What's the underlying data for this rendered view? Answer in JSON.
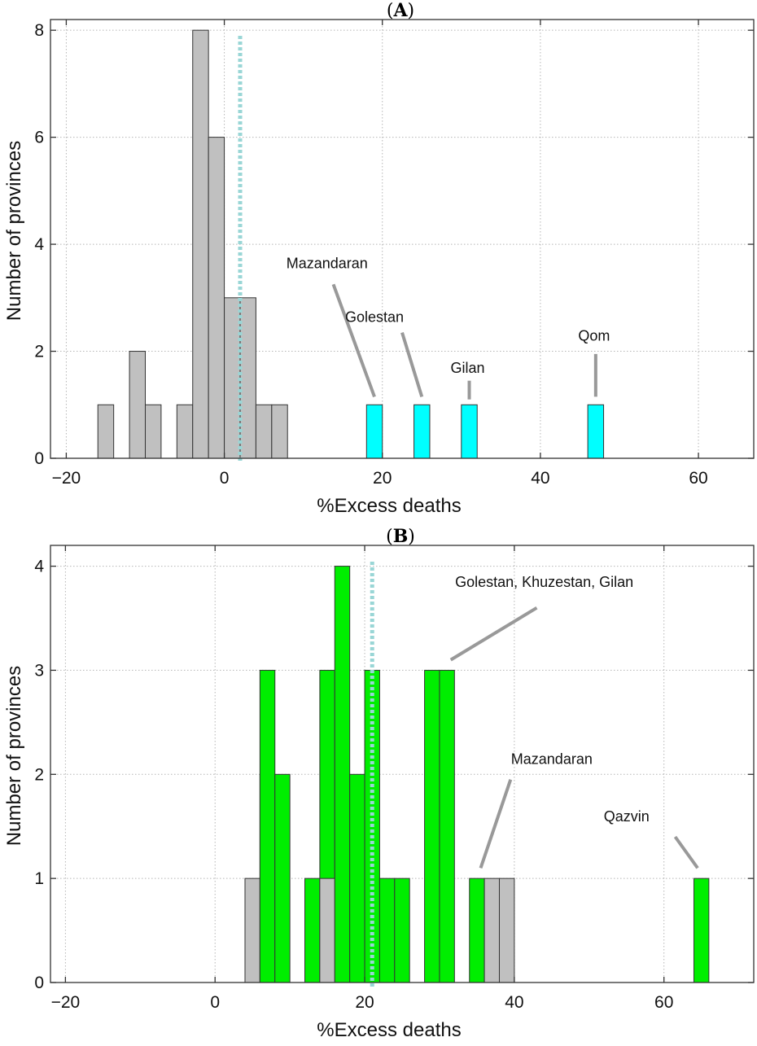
{
  "chart_data": [
    {
      "type": "bar",
      "panel_label": "A",
      "xlabel": "%Excess deaths",
      "ylabel": "Number of provinces",
      "xlim": [
        -22,
        67
      ],
      "ylim": [
        0,
        8.2
      ],
      "xticks": [
        -20,
        0,
        20,
        40,
        60
      ],
      "yticks": [
        0,
        2,
        4,
        6,
        8
      ],
      "grid": true,
      "reference_line_x": 2,
      "colors": {
        "gray": "#c0c0c0",
        "highlight": "#00ffff",
        "refline": "#99d6d6"
      },
      "bars": [
        {
          "x0": -16,
          "x1": -14,
          "value": 1,
          "color": "gray"
        },
        {
          "x0": -12,
          "x1": -10,
          "value": 2,
          "color": "gray"
        },
        {
          "x0": -10,
          "x1": -8,
          "value": 1,
          "color": "gray"
        },
        {
          "x0": -6,
          "x1": -4,
          "value": 1,
          "color": "gray"
        },
        {
          "x0": -4,
          "x1": -2,
          "value": 8,
          "color": "gray"
        },
        {
          "x0": -2,
          "x1": 0,
          "value": 6,
          "color": "gray"
        },
        {
          "x0": 0,
          "x1": 2,
          "value": 3,
          "color": "gray"
        },
        {
          "x0": 2,
          "x1": 4,
          "value": 3,
          "color": "gray"
        },
        {
          "x0": 4,
          "x1": 6,
          "value": 1,
          "color": "gray"
        },
        {
          "x0": 6,
          "x1": 8,
          "value": 1,
          "color": "gray"
        },
        {
          "x0": 18,
          "x1": 20,
          "value": 1,
          "color": "highlight"
        },
        {
          "x0": 24,
          "x1": 26,
          "value": 1,
          "color": "highlight"
        },
        {
          "x0": 30,
          "x1": 32,
          "value": 1,
          "color": "highlight"
        },
        {
          "x0": 46,
          "x1": 48,
          "value": 1,
          "color": "highlight"
        }
      ],
      "annotations": [
        {
          "text": "Mazandaran",
          "tx": 13,
          "ty": 3.55,
          "from": [
            13.8,
            3.25
          ],
          "to": [
            19,
            1.15
          ]
        },
        {
          "text": "Golestan",
          "tx": 19,
          "ty": 2.55,
          "from": [
            22.5,
            2.35
          ],
          "to": [
            25,
            1.15
          ]
        },
        {
          "text": "Gilan",
          "tx": 30.8,
          "ty": 1.6,
          "from": [
            31,
            1.45
          ],
          "to": [
            31,
            1.1
          ]
        },
        {
          "text": "Qom",
          "tx": 46.8,
          "ty": 2.2,
          "from": [
            47,
            1.95
          ],
          "to": [
            47,
            1.15
          ]
        }
      ]
    },
    {
      "type": "bar",
      "panel_label": "B",
      "xlabel": "%Excess deaths",
      "ylabel": "Number of provinces",
      "xlim": [
        -22,
        72
      ],
      "ylim": [
        0,
        4.2
      ],
      "xticks": [
        -20,
        0,
        20,
        40,
        60
      ],
      "yticks": [
        0,
        1,
        2,
        3,
        4
      ],
      "grid": true,
      "reference_line_x": 21,
      "colors": {
        "gray": "#c0c0c0",
        "highlight": "#00ee00",
        "refline": "#99d6d6"
      },
      "bars": [
        {
          "x0": 4,
          "x1": 6,
          "value": 1,
          "color": "gray"
        },
        {
          "x0": 6,
          "x1": 8,
          "value": 2,
          "color": "gray"
        },
        {
          "x0": 6,
          "x1": 8,
          "value": 3,
          "color": "highlight"
        },
        {
          "x0": 8,
          "x1": 10,
          "value": 2,
          "color": "highlight"
        },
        {
          "x0": 12,
          "x1": 14,
          "value": 1,
          "color": "highlight"
        },
        {
          "x0": 14,
          "x1": 16,
          "value": 3,
          "color": "highlight"
        },
        {
          "x0": 14,
          "x1": 16,
          "value": 1,
          "color": "gray"
        },
        {
          "x0": 16,
          "x1": 18,
          "value": 4,
          "color": "highlight"
        },
        {
          "x0": 18,
          "x1": 20,
          "value": 2,
          "color": "highlight"
        },
        {
          "x0": 20,
          "x1": 22,
          "value": 3,
          "color": "highlight"
        },
        {
          "x0": 22,
          "x1": 24,
          "value": 1,
          "color": "highlight"
        },
        {
          "x0": 24,
          "x1": 26,
          "value": 1,
          "color": "highlight"
        },
        {
          "x0": 28,
          "x1": 30,
          "value": 3,
          "color": "highlight"
        },
        {
          "x0": 30,
          "x1": 32,
          "value": 3,
          "color": "highlight"
        },
        {
          "x0": 34,
          "x1": 36,
          "value": 1,
          "color": "highlight"
        },
        {
          "x0": 36,
          "x1": 38,
          "value": 1,
          "color": "gray"
        },
        {
          "x0": 38,
          "x1": 40,
          "value": 1,
          "color": "gray"
        },
        {
          "x0": 64,
          "x1": 66,
          "value": 1,
          "color": "highlight"
        }
      ],
      "annotations": [
        {
          "text": "Golestan, Khuzestan, Gilan",
          "tx": 44,
          "ty": 3.8,
          "from": [
            43,
            3.6
          ],
          "to": [
            31.5,
            3.1
          ]
        },
        {
          "text": "Mazandaran",
          "tx": 45,
          "ty": 2.1,
          "from": [
            39.5,
            1.95
          ],
          "to": [
            35.5,
            1.1
          ]
        },
        {
          "text": "Qazvin",
          "tx": 55,
          "ty": 1.55,
          "from": [
            61.5,
            1.4
          ],
          "to": [
            64.5,
            1.1
          ]
        }
      ]
    }
  ]
}
